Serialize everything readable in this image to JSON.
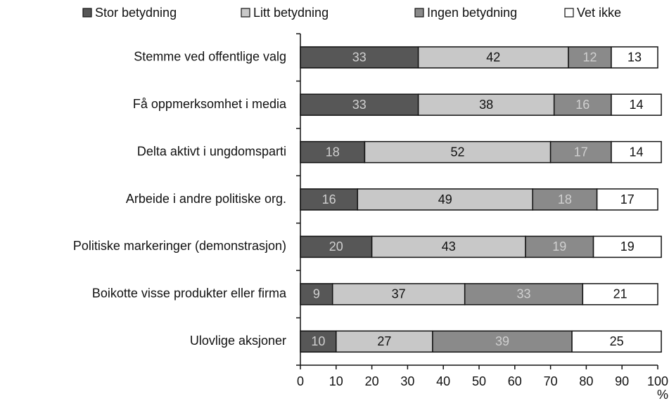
{
  "chart_data": {
    "type": "stacked_barh",
    "x_label": "%",
    "categories": [
      "Stemme ved offentlige valg",
      "Få oppmerksomhet i media",
      "Delta aktivt i ungdomsparti",
      "Arbeide i andre politiske org.",
      "Politiske markeringer (demonstrasjon)",
      "Boikotte visse produkter eller firma",
      "Ulovlige aksjoner"
    ],
    "series": [
      {
        "name": "Stor betydning",
        "color": "#575757",
        "label_color": "#d0d0d0",
        "values": [
          33,
          33,
          18,
          16,
          20,
          9,
          10
        ]
      },
      {
        "name": "Litt betydning",
        "color": "#c8c8c8",
        "label_color": "#111111",
        "values": [
          42,
          38,
          52,
          49,
          43,
          37,
          27
        ]
      },
      {
        "name": "Ingen betydning",
        "color": "#8a8a8a",
        "label_color": "#d0d0d0",
        "values": [
          12,
          16,
          17,
          18,
          19,
          33,
          39
        ]
      },
      {
        "name": "Vet ikke",
        "color": "#ffffff",
        "label_color": "#111111",
        "values": [
          13,
          14,
          14,
          17,
          19,
          21,
          25
        ]
      }
    ],
    "xlim": [
      0,
      100
    ],
    "xticks": [
      0,
      10,
      20,
      30,
      40,
      50,
      60,
      70,
      80,
      90,
      100
    ],
    "legend": "top"
  }
}
